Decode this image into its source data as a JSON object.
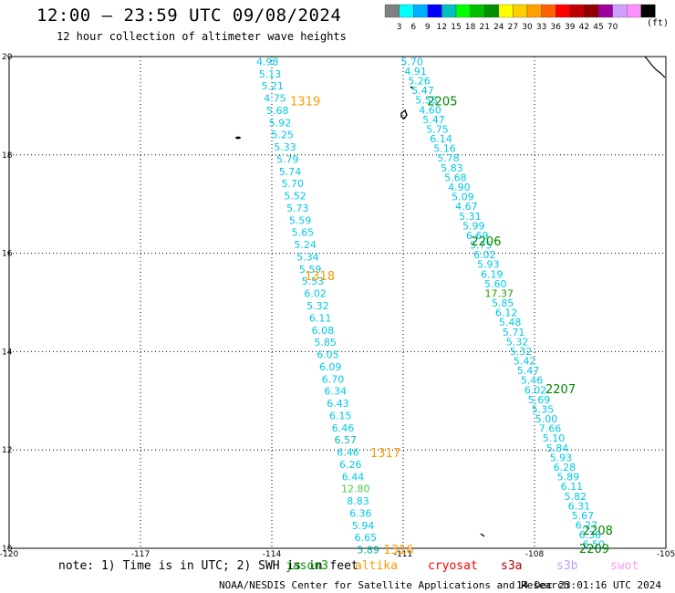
{
  "header": {
    "title": "12:00 – 23:59 UTC 09/08/2024",
    "subtitle": "12 hour collection of altimeter wave heights"
  },
  "legend": {
    "units": "(ft)",
    "colors": [
      "#808080",
      "#00ffff",
      "#00b0ff",
      "#0000ff",
      "#00c0c0",
      "#00ff00",
      "#00c000",
      "#009000",
      "#ffff00",
      "#ffd000",
      "#ffa000",
      "#ff6000",
      "#ff0000",
      "#c00000",
      "#900000",
      "#a000a0",
      "#d0a0ff",
      "#ff90ff",
      "#000000"
    ],
    "labels": [
      "3",
      "6",
      "9",
      "12",
      "15",
      "18",
      "21",
      "24",
      "27",
      "30",
      "33",
      "36",
      "39",
      "42",
      "45",
      "70"
    ]
  },
  "map": {
    "lat_labels": [
      "20",
      "18",
      "16",
      "14",
      "12",
      "10"
    ],
    "lon_labels": [
      "-120",
      "-117",
      "-114",
      "-111",
      "-108",
      "-105"
    ],
    "pass_labels": [
      {
        "text": "1319",
        "color": "#ff9900",
        "lon": -113.58,
        "lat": 19.1
      },
      {
        "text": "2205",
        "color": "#008800",
        "lon": -110.45,
        "lat": 19.1
      },
      {
        "text": "2206",
        "color": "#008800",
        "lon": -109.45,
        "lat": 16.25
      },
      {
        "text": "1318",
        "color": "#ff9900",
        "lon": -113.25,
        "lat": 15.55
      },
      {
        "text": "2207",
        "color": "#008800",
        "lon": -107.75,
        "lat": 13.25
      },
      {
        "text": "1317",
        "color": "#ff9900",
        "lon": -111.75,
        "lat": 11.95
      },
      {
        "text": "2208",
        "color": "#008800",
        "lon": -106.9,
        "lat": 10.37
      },
      {
        "text": "2209",
        "color": "#008800",
        "lon": -106.98,
        "lat": 10.0
      },
      {
        "text": "1316",
        "color": "#ff9900",
        "lon": -111.45,
        "lat": 9.98
      }
    ],
    "tracks": [
      {
        "lon_start": -114.1,
        "lat_start": 19.9,
        "lon_end": -111.8,
        "lat_end": 9.97,
        "values": [
          "4.98",
          "5.13",
          "5.21",
          "4.75",
          "5.68",
          "5.92",
          "5.25",
          "5.33",
          "5.79",
          "5.74",
          "5.70",
          "5.52",
          "5.73",
          "5.59",
          "5.65",
          "5.24",
          "5.34",
          "5.59",
          "5.53",
          "6.02",
          "5.32",
          "6.11",
          "6.08",
          "5.85",
          "6.05",
          "6.09",
          "6.70",
          "6.34",
          "6.43",
          "6.15",
          "6.46",
          "6.57",
          "6.46",
          "6.26",
          "6.44",
          "12.80",
          "8.83",
          "6.36",
          "5.94",
          "6.65",
          "5.89"
        ],
        "colors": {
          "5.89": "#00aaaa",
          "12.80": "#44cc44",
          "6.57": "#00bbbb"
        }
      },
      {
        "lon_start": -110.8,
        "lat_start": 19.9,
        "lon_end": -106.65,
        "lat_end": 10.08,
        "values": [
          "5.70",
          "4.91",
          "5.26",
          "5.47",
          "5.53",
          "4.60",
          "5.47",
          "5.75",
          "6.14",
          "5.16",
          "5.78",
          "5.83",
          "5.68",
          "4.90",
          "5.09",
          "4.67",
          "5.31",
          "5.99",
          "6.69",
          "5.75",
          "6.02",
          "5.93",
          "6.19",
          "5.60",
          "17.37",
          "5.85",
          "6.12",
          "5.48",
          "5.71",
          "5.32",
          "5.32",
          "5.42",
          "5.47",
          "5.46",
          "6.02",
          "5.69",
          "5.35",
          "5.00",
          "7.66",
          "5.10",
          "5.84",
          "5.93",
          "6.28",
          "5.89",
          "6.11",
          "5.82",
          "6.31",
          "5.67",
          "6.27",
          "6.38",
          "6.50"
        ],
        "colors": {
          "17.37": "#339900"
        }
      }
    ]
  },
  "footer": {
    "note": "note:  1) Time is in UTC; 2) SWH is in feet",
    "satellites": [
      {
        "name": "jason3",
        "color": "#009900"
      },
      {
        "name": "altika",
        "color": "#ff9900"
      },
      {
        "name": "cryosat",
        "color": "#ff0000"
      },
      {
        "name": "s3a",
        "color": "#aa0000"
      },
      {
        "name": "s3b",
        "color": "#b8a0ff"
      },
      {
        "name": "swot",
        "color": "#ff99ee"
      }
    ],
    "credit": "NOAA/NESDIS Center for Satellite Applications and Research",
    "timestamp": "14 Dec 23:01:16 UTC 2024"
  }
}
